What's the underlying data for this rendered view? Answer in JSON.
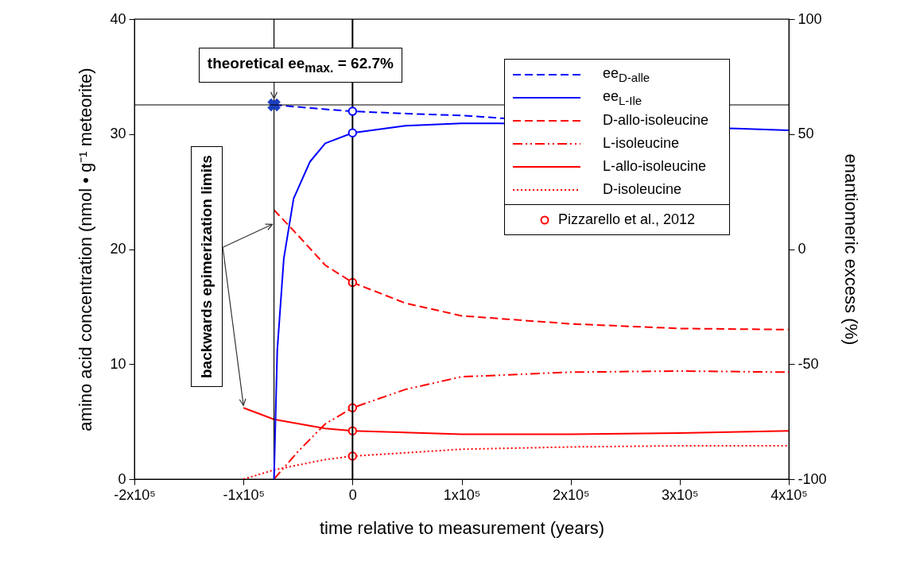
{
  "chart_data": {
    "type": "line",
    "xlabel": "time relative to measurement (years)",
    "ylabel": "amino acid concentration (nmol • g⁻¹ meteorite)",
    "y2label": "enantiomeric excess (%)",
    "xlim": [
      -200000,
      400000
    ],
    "xticks": [
      {
        "value": -200000,
        "label": "-2x10⁵"
      },
      {
        "value": -100000,
        "label": "-1x10⁵"
      },
      0,
      {
        "value": 100000,
        "label": "1x10⁵"
      },
      {
        "value": 200000,
        "label": "2x10⁵"
      },
      {
        "value": 300000,
        "label": "3x10⁵"
      },
      {
        "value": 400000,
        "label": "4x10⁵"
      }
    ],
    "ylim": [
      0,
      40
    ],
    "yticks": [
      0,
      10,
      20,
      30,
      40
    ],
    "y2lim": [
      -100,
      100
    ],
    "y2ticks": [
      -100,
      -50,
      0,
      50,
      100
    ],
    "legend": "top right",
    "grid": false,
    "series": [
      {
        "name": "ee$_{D-alle}$",
        "axis": "y2",
        "color": "#0000ff",
        "line_style": "dashed",
        "x": [
          -72000,
          -50000,
          -25000,
          0,
          50000,
          100000,
          140000
        ],
        "values": [
          62.7,
          61.8,
          60.8,
          59.9,
          58.9,
          58.1,
          56.8
        ]
      },
      {
        "name": "ee$_{L-Ile}$",
        "axis": "y2",
        "color": "#0000ff",
        "line_style": "solid",
        "x": [
          -72000,
          -69000,
          -63000,
          -54000,
          -39000,
          -25000,
          0,
          48500,
          100000,
          135000,
          352000,
          400000
        ],
        "values": [
          -100,
          -44,
          -4.1,
          22,
          38,
          46,
          50.5,
          53.6,
          54.7,
          54.7,
          52.4,
          51.6
        ]
      },
      {
        "name": "D-allo-isoleucine",
        "color": "#ff0000",
        "line_style": "dashed",
        "x": [
          -72000,
          -50000,
          -25000,
          0,
          48500,
          100000,
          200000,
          300000,
          400000
        ],
        "values": [
          23.4,
          21.2,
          18.6,
          17.1,
          15.3,
          14.2,
          13.5,
          13.1,
          13.0
        ]
      },
      {
        "name": "L-isoleucine",
        "color": "#ff0000",
        "line_style": "dashdot",
        "x": [
          -72000,
          -50000,
          -25000,
          0,
          48500,
          100000,
          200000,
          300000,
          400000
        ],
        "values": [
          0,
          2.4,
          4.8,
          6.2,
          7.8,
          8.9,
          9.3,
          9.4,
          9.3
        ]
      },
      {
        "name": "L-allo-isoleucine",
        "color": "#ff0000",
        "line_style": "solid",
        "x": [
          -100000,
          -72000,
          -25000,
          0,
          100000,
          200000,
          300000,
          400000
        ],
        "values": [
          6.2,
          5.2,
          4.4,
          4.2,
          3.9,
          3.9,
          4.0,
          4.2
        ]
      },
      {
        "name": "D-isoleucine",
        "color": "#ff0000",
        "line_style": "dotted",
        "x": [
          -100000,
          -72000,
          -25000,
          0,
          100000,
          200000,
          300000,
          400000
        ],
        "values": [
          0,
          0.8,
          1.7,
          2.0,
          2.6,
          2.8,
          2.9,
          2.9
        ]
      },
      {
        "type": "scatter",
        "marker": "cross",
        "axis": "y2",
        "color": "#1c3fbf",
        "x": [
          -72000
        ],
        "values": [
          62.7
        ]
      },
      {
        "type": "scatter",
        "marker": "circle",
        "axis": "y2",
        "color": "#0000ff",
        "x": [
          0,
          0
        ],
        "values": [
          59.9,
          50.5
        ]
      },
      {
        "name": "Pizzarello et al., 2012",
        "type": "scatter",
        "marker": "circle",
        "color": "#ff0000",
        "x": [
          0,
          0,
          0,
          0
        ],
        "values": [
          17.1,
          6.2,
          4.2,
          2.0
        ]
      }
    ],
    "ref_lines": [
      {
        "axis": "x",
        "value": 0
      },
      {
        "axis": "x",
        "value": -72000
      },
      {
        "axis": "y2",
        "value": 62.7
      }
    ],
    "annotations": [
      "theoretical ee$_{max.}$ = 62.7%",
      {
        "text": "backwards epimerization limits",
        "x": -100000,
        "y": 6.2
      }
    ]
  }
}
